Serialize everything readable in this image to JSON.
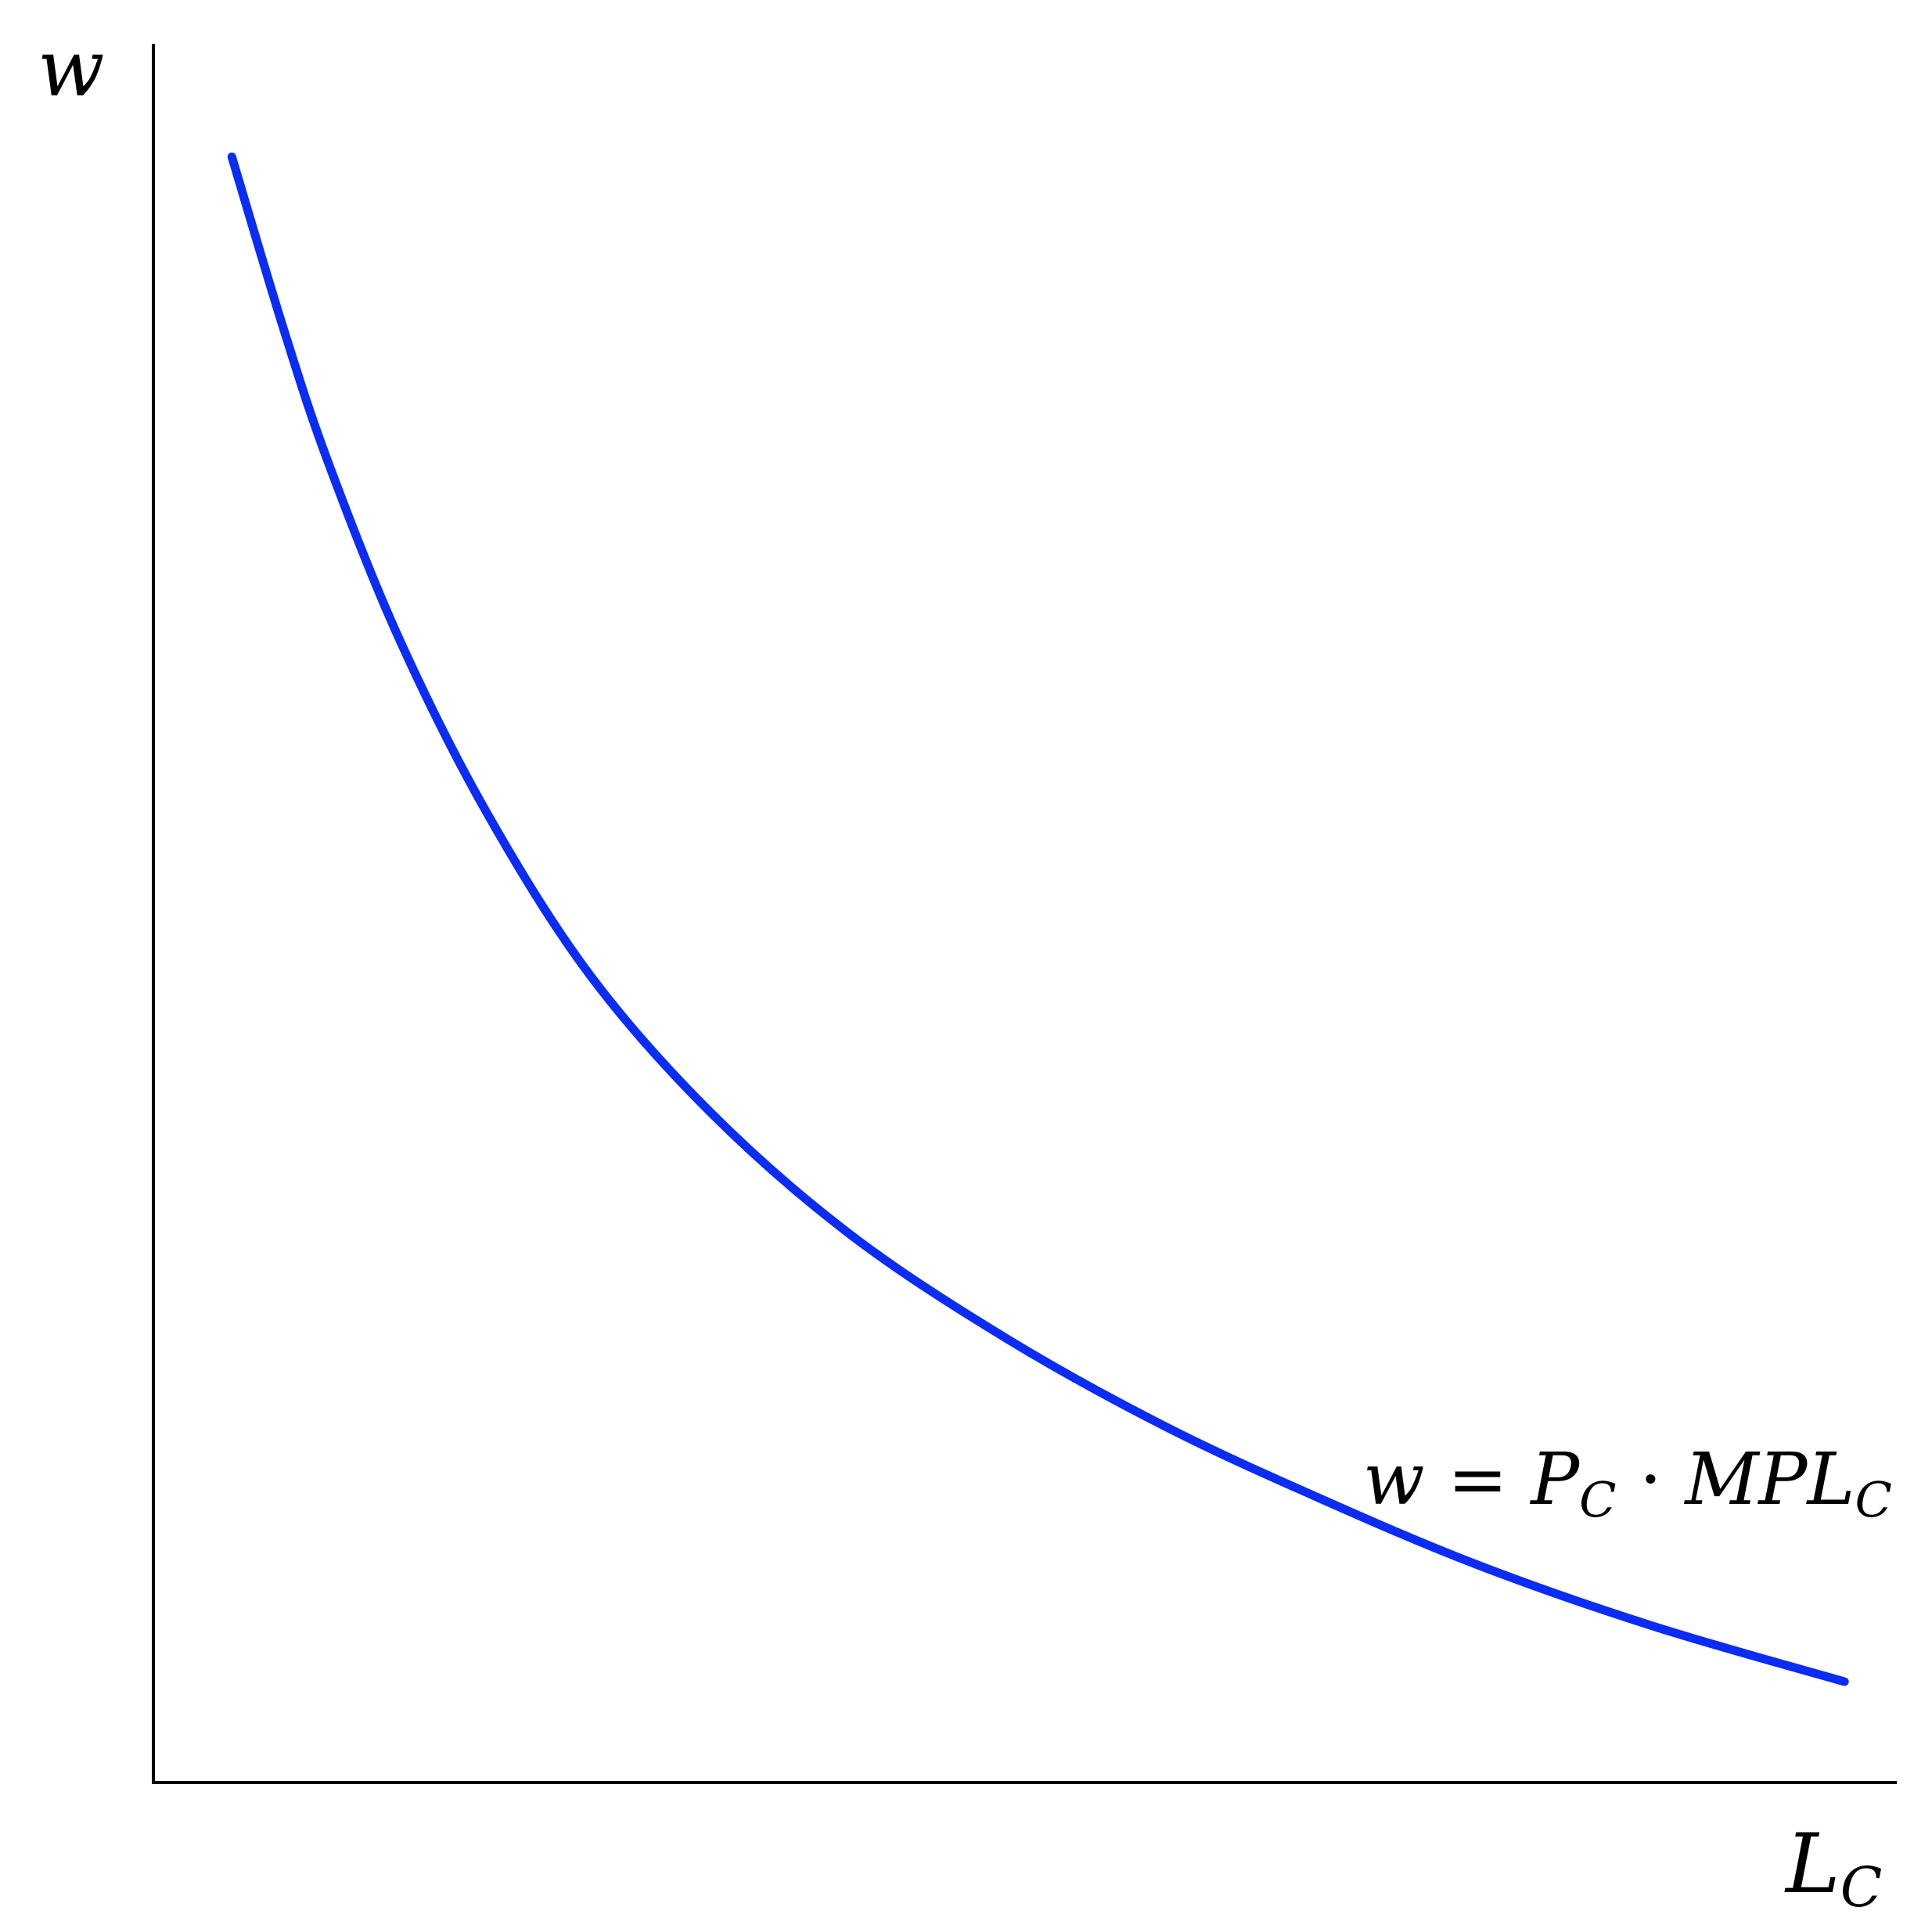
{
  "chart_data": {
    "type": "line",
    "title": "",
    "xlabel": {
      "base": "L",
      "sub": "C"
    },
    "ylabel": "w",
    "xlim": [
      0,
      1
    ],
    "ylim": [
      0,
      1
    ],
    "grid": false,
    "series": [
      {
        "name": "w = P_C · MPL_C",
        "label": {
          "lhs": "w",
          "eq": " = ",
          "p": "P",
          "p_sub": "C",
          "dot": " · ",
          "mpl": "MPL",
          "mpl_sub": "C"
        },
        "color": "#0a2cf5",
        "points": [
          [
            0.045,
            0.935
          ],
          [
            0.075,
            0.835
          ],
          [
            0.1,
            0.76
          ],
          [
            0.14,
            0.66
          ],
          [
            0.19,
            0.56
          ],
          [
            0.25,
            0.465
          ],
          [
            0.32,
            0.385
          ],
          [
            0.4,
            0.315
          ],
          [
            0.49,
            0.255
          ],
          [
            0.58,
            0.205
          ],
          [
            0.67,
            0.163
          ],
          [
            0.76,
            0.125
          ],
          [
            0.86,
            0.09
          ],
          [
            0.97,
            0.058
          ]
        ]
      }
    ],
    "ticks": {
      "x": [],
      "y": []
    }
  }
}
